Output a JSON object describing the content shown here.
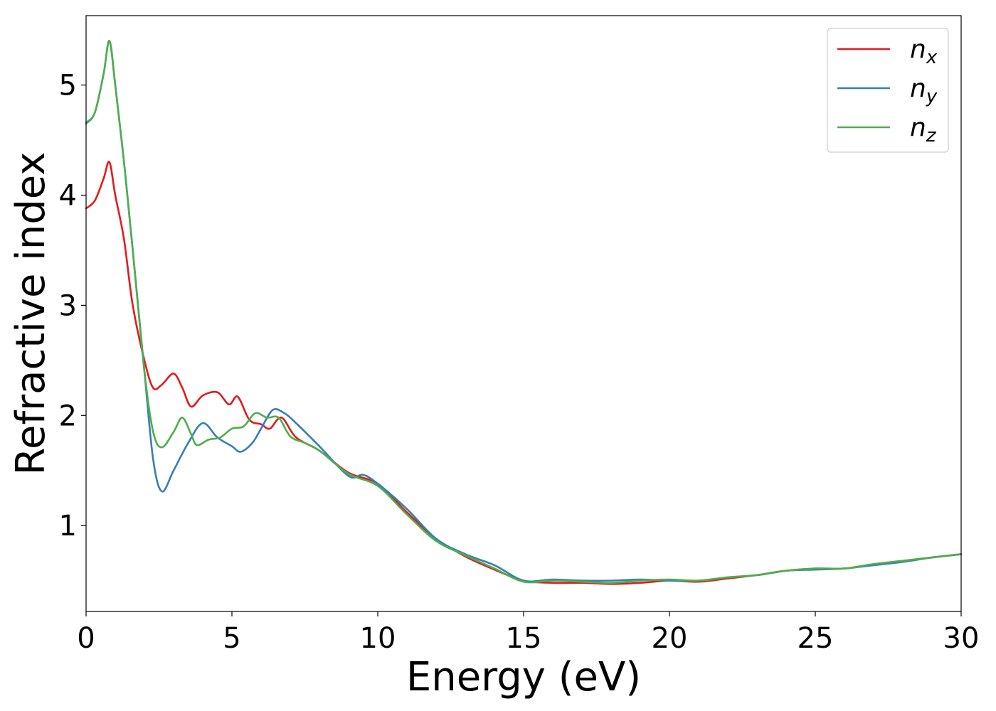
{
  "chart_data": {
    "type": "line",
    "xlabel": "Energy (eV)",
    "ylabel": "Refractive index",
    "xlim": [
      0,
      30
    ],
    "ylim": [
      0.22,
      5.63
    ],
    "xticks": [
      0,
      5,
      10,
      15,
      20,
      25,
      30
    ],
    "yticks": [
      1,
      2,
      3,
      4,
      5
    ],
    "grid": false,
    "legend_position": "top-right",
    "series": [
      {
        "name": "n_x",
        "label_main": "n",
        "label_sub": "x",
        "color": "#e41a1c",
        "x": [
          0,
          0.3,
          0.6,
          0.8,
          1.0,
          1.3,
          1.6,
          2.0,
          2.3,
          2.6,
          3.0,
          3.3,
          3.6,
          4.0,
          4.5,
          4.9,
          5.2,
          5.6,
          6.0,
          6.3,
          6.7,
          7.2,
          8.0,
          9.0,
          10.0,
          11.0,
          12.0,
          13.0,
          14.0,
          15.0,
          16.0,
          17.0,
          18.0,
          19.0,
          20.0,
          21.0,
          22.0,
          23.0,
          24.0,
          25.0,
          26.0,
          27.0,
          28.0,
          29.0,
          30.0
        ],
        "y": [
          3.88,
          3.95,
          4.15,
          4.3,
          4.0,
          3.6,
          3.0,
          2.5,
          2.25,
          2.28,
          2.38,
          2.25,
          2.08,
          2.18,
          2.21,
          2.1,
          2.17,
          1.96,
          1.92,
          1.88,
          1.98,
          1.8,
          1.68,
          1.48,
          1.38,
          1.12,
          0.88,
          0.72,
          0.6,
          0.5,
          0.48,
          0.48,
          0.47,
          0.48,
          0.5,
          0.49,
          0.52,
          0.55,
          0.59,
          0.61,
          0.61,
          0.65,
          0.68,
          0.71,
          0.74
        ]
      },
      {
        "name": "n_y",
        "label_main": "n",
        "label_sub": "y",
        "color": "#377eb8",
        "x": [
          0,
          0.3,
          0.6,
          0.8,
          1.0,
          1.3,
          1.6,
          2.0,
          2.3,
          2.6,
          3.0,
          3.5,
          4.0,
          4.5,
          5.0,
          5.3,
          5.7,
          6.0,
          6.4,
          6.8,
          7.2,
          8.0,
          9.0,
          9.5,
          10.0,
          11.0,
          12.0,
          13.0,
          14.0,
          15.0,
          16.0,
          17.0,
          18.0,
          19.0,
          20.0,
          21.0,
          22.0,
          23.0,
          24.0,
          25.0,
          26.0,
          27.0,
          28.0,
          29.0,
          30.0
        ],
        "y": [
          4.65,
          4.75,
          5.1,
          5.4,
          5.0,
          4.3,
          3.5,
          2.4,
          1.6,
          1.31,
          1.5,
          1.75,
          1.93,
          1.8,
          1.72,
          1.67,
          1.75,
          1.88,
          2.05,
          2.02,
          1.93,
          1.72,
          1.45,
          1.46,
          1.38,
          1.15,
          0.88,
          0.74,
          0.64,
          0.5,
          0.51,
          0.5,
          0.5,
          0.51,
          0.5,
          0.5,
          0.53,
          0.55,
          0.59,
          0.6,
          0.61,
          0.64,
          0.67,
          0.71,
          0.74
        ]
      },
      {
        "name": "n_z",
        "label_main": "n",
        "label_sub": "z",
        "color": "#4daf4a",
        "x": [
          0,
          0.3,
          0.6,
          0.8,
          1.0,
          1.3,
          1.6,
          2.0,
          2.3,
          2.6,
          3.0,
          3.3,
          3.6,
          3.8,
          4.2,
          4.6,
          5.0,
          5.4,
          5.8,
          6.2,
          6.6,
          7.0,
          7.5,
          8.0,
          9.0,
          10.0,
          11.0,
          12.0,
          13.0,
          14.0,
          15.0,
          16.0,
          17.0,
          18.0,
          19.0,
          20.0,
          21.0,
          22.0,
          23.0,
          24.0,
          25.0,
          26.0,
          27.0,
          28.0,
          29.0,
          30.0
        ],
        "y": [
          4.66,
          4.75,
          5.1,
          5.4,
          5.0,
          4.3,
          3.5,
          2.4,
          1.85,
          1.71,
          1.85,
          1.98,
          1.83,
          1.73,
          1.78,
          1.8,
          1.88,
          1.9,
          2.02,
          1.98,
          1.98,
          1.81,
          1.75,
          1.68,
          1.47,
          1.36,
          1.1,
          0.86,
          0.73,
          0.61,
          0.49,
          0.5,
          0.49,
          0.48,
          0.5,
          0.51,
          0.5,
          0.53,
          0.55,
          0.59,
          0.61,
          0.61,
          0.65,
          0.68,
          0.71,
          0.74
        ]
      }
    ]
  }
}
